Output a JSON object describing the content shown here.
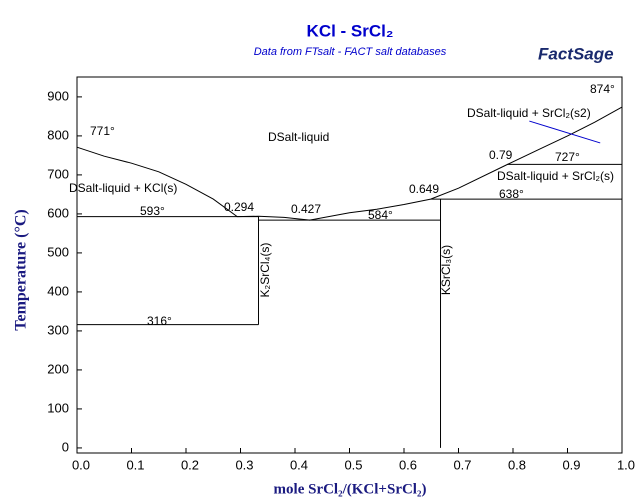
{
  "chart_data": {
    "type": "line",
    "title": "KCl - SrCl₂",
    "subtitle": "Data from FTsalt - FACT salt databases",
    "logo": "FactSage",
    "x_label": "mole SrCl₂/(KCl+SrCl₂)",
    "y_label": "Temperature (°C)",
    "xlim": [
      0,
      1
    ],
    "ylim": [
      -13,
      951
    ],
    "xticks": [
      {
        "value": 0,
        "label": "0.0"
      },
      0.1,
      0.2,
      0.3,
      0.4,
      0.5,
      0.6,
      0.7,
      0.8,
      0.9,
      {
        "value": 1,
        "label": "1.0"
      }
    ],
    "yticks": [
      0,
      100,
      200,
      300,
      400,
      500,
      600,
      700,
      800,
      900
    ],
    "series": [
      {
        "color": "#000000",
        "x": [
          0,
          0.05,
          0.1,
          0.15,
          0.2,
          0.25,
          0.294,
          0.333,
          0.38,
          0.427,
          0.5,
          0.55,
          0.6,
          0.649,
          0.7,
          0.79,
          0.85,
          0.9,
          0.95,
          1.0
        ],
        "values": [
          771,
          748,
          730,
          708,
          676,
          638,
          593,
          594,
          591,
          584,
          603,
          612,
          624,
          638,
          666,
          727,
          767,
          800,
          835,
          874
        ]
      },
      {
        "color": "#000000",
        "x": [
          0,
          0.333
        ],
        "values": [
          593,
          593
        ]
      },
      {
        "color": "#000000",
        "x": [
          0.333,
          0.667
        ],
        "values": [
          584,
          584
        ]
      },
      {
        "color": "#000000",
        "x": [
          0.649,
          1.0
        ],
        "values": [
          638,
          638
        ]
      },
      {
        "color": "#000000",
        "x": [
          0.79,
          1.0
        ],
        "values": [
          727,
          727
        ]
      },
      {
        "color": "#000000",
        "x": [
          0,
          0.333
        ],
        "values": [
          316,
          316
        ]
      },
      {
        "color": "#000000",
        "x": [
          0.333,
          0.333
        ],
        "values": [
          316,
          593
        ]
      },
      {
        "color": "#000000",
        "x": [
          0.667,
          0.667
        ],
        "values": [
          0,
          638
        ]
      },
      {
        "color": "#0000cc",
        "x": [
          0.83,
          0.96
        ],
        "values": [
          838,
          782
        ]
      }
    ],
    "annotations": [
      {
        "text": "771°"
      },
      {
        "text": "593°"
      },
      {
        "text": "0.294"
      },
      {
        "text": "0.427"
      },
      {
        "text": "584°"
      },
      {
        "text": "0.649"
      },
      {
        "text": "638°"
      },
      {
        "text": "0.79"
      },
      {
        "text": "727°"
      },
      {
        "text": "874°"
      },
      {
        "text": "316°"
      },
      {
        "text": "DSalt-liquid"
      },
      {
        "text": "DSalt-liquid + KCl(s)"
      },
      {
        "text": "DSalt-liquid + SrCl₂(s)"
      },
      {
        "text": "DSalt-liquid + SrCl₂(s2)",
        "color": "#0000cc"
      },
      {
        "text": "K₂SrCl₄(s)"
      },
      {
        "text": "KSrCl₃(s)"
      }
    ]
  }
}
